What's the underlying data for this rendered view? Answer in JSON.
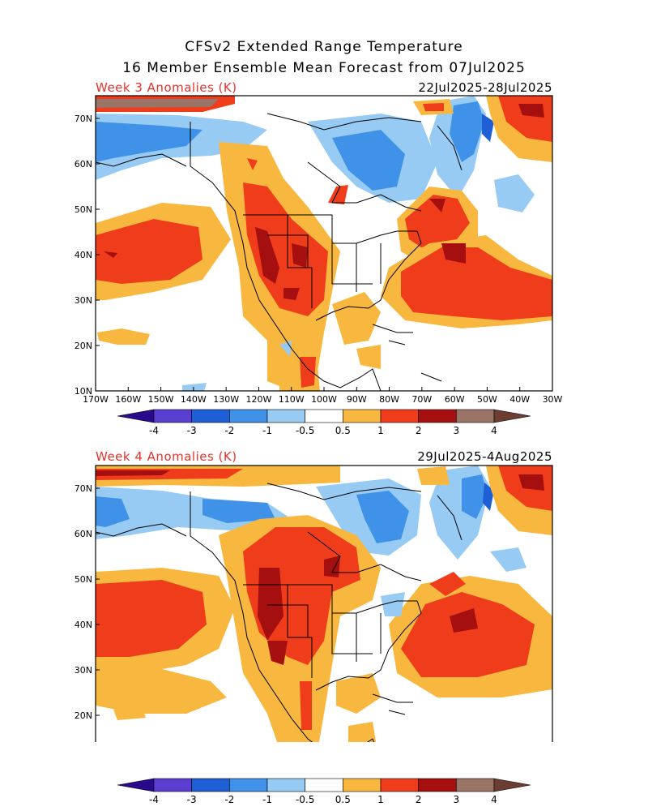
{
  "header": {
    "title_line1": "CFSv2 Extended Range Temperature",
    "title_line2": "16 Member Ensemble Mean Forecast from 07Jul2025"
  },
  "panels": [
    {
      "label": "Week 3 Anomalies (K)",
      "dates": "22Jul2025-28Jul2025"
    },
    {
      "label": "Week 4 Anomalies (K)",
      "dates": "29Jul2025-4Aug2025"
    }
  ],
  "axes": {
    "lat_labels": [
      "70N",
      "60N",
      "50N",
      "40N",
      "30N",
      "20N",
      "10N"
    ],
    "lon_labels": [
      "170W",
      "160W",
      "150W",
      "140W",
      "130W",
      "120W",
      "110W",
      "100W",
      "90W",
      "80W",
      "70W",
      "60W",
      "50W",
      "40W",
      "30W"
    ]
  },
  "colorbar": {
    "labels": [
      "-4",
      "-3",
      "-2",
      "-1",
      "-0.5",
      "0.5",
      "1",
      "2",
      "3",
      "4"
    ],
    "colors": [
      "#2a0a8c",
      "#5a3fd1",
      "#1f5fd6",
      "#3f92e8",
      "#97cbf3",
      "#ffffff",
      "#f8b73e",
      "#ef3d1c",
      "#a50f0f",
      "#9a7466",
      "#6b3d33"
    ]
  },
  "map_colors": {
    "warm_05": "#f8b73e",
    "warm_1": "#ef3d1c",
    "warm_2": "#a50f0f",
    "warm_3": "#9a7466",
    "cool_05": "#97cbf3",
    "cool_1": "#3f92e8",
    "cool_2": "#1f5fd6",
    "cool_3": "#5a3fd1"
  }
}
